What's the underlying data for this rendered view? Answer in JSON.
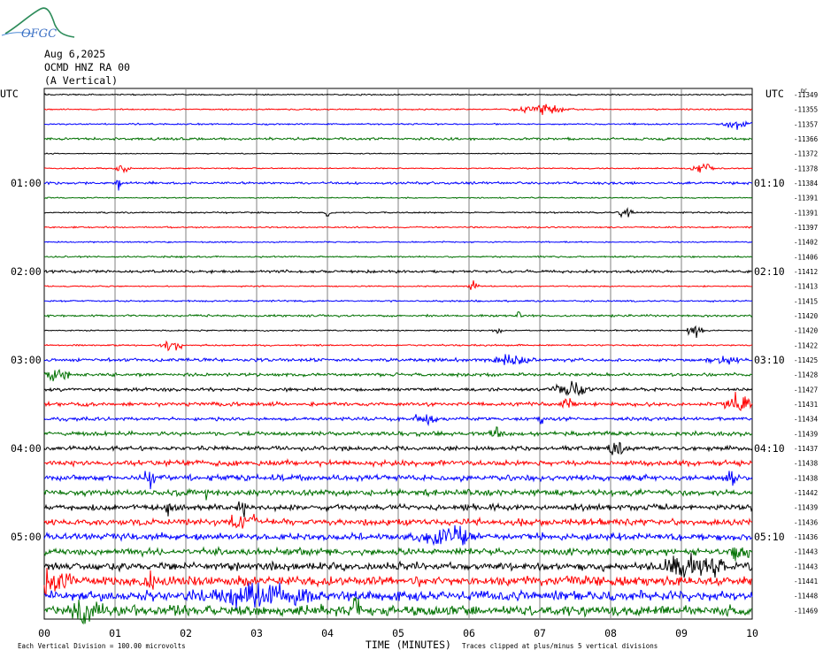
{
  "logo": {
    "text": "OFGC"
  },
  "header": {
    "date": "Aug 6,2025",
    "station": "OCMD HNZ RA 00",
    "component": "(A Vertical)"
  },
  "chart_data": {
    "type": "line",
    "title": "Aug 6,2025",
    "left_axis_label": "UTC",
    "right_axis_label": "UTC",
    "right_offset_header": "DC",
    "xlabel": "TIME (MINUTES)",
    "xlim": [
      0,
      10
    ],
    "x_ticks": [
      "00",
      "01",
      "02",
      "03",
      "04",
      "05",
      "06",
      "07",
      "08",
      "09",
      "10"
    ],
    "left_time_labels": [
      "01:00",
      "02:00",
      "03:00",
      "04:00",
      "05:00"
    ],
    "right_time_labels": [
      "01:10",
      "02:10",
      "03:10",
      "04:10",
      "05:10"
    ],
    "grid": true,
    "footer_left": "Each Vertical Division =  100.00 microvolts",
    "footer_right": "Traces clipped at plus/minus 5 vertical divisions",
    "trace_colors": [
      "#000000",
      "#ff0000",
      "#0000ff",
      "#007000"
    ],
    "trace_offsets": [
      -11349,
      -11355,
      -11357,
      -11366,
      -11372,
      -11378,
      -11384,
      -11391,
      -11391,
      -11397,
      -11402,
      -11406,
      -11412,
      -11413,
      -11415,
      -11420,
      -11420,
      -11422,
      -11425,
      -11428,
      -11427,
      -11431,
      -11434,
      -11439,
      -11437,
      -11438,
      -11438,
      -11442,
      -11439,
      -11436,
      -11436,
      -11443,
      -11443,
      -11441,
      -11448,
      -11469
    ],
    "noise_level": [
      0.5,
      0.5,
      0.55,
      0.9,
      0.35,
      0.45,
      0.9,
      0.45,
      0.55,
      0.55,
      0.5,
      0.6,
      1.0,
      0.45,
      0.6,
      0.8,
      0.5,
      0.6,
      1.2,
      1.2,
      1.2,
      1.4,
      1.3,
      1.6,
      1.6,
      2.0,
      2.2,
      2.2,
      2.2,
      2.5,
      2.6,
      2.6,
      3.0,
      3.4,
      3.6,
      3.8
    ],
    "events": [
      {
        "trace": 1,
        "minute": 7.0,
        "amplitude": 4,
        "duration": 0.5
      },
      {
        "trace": 2,
        "minute": 9.8,
        "amplitude": 3,
        "duration": 0.3
      },
      {
        "trace": 5,
        "minute": 1.1,
        "amplitude": 5,
        "duration": 0.15
      },
      {
        "trace": 5,
        "minute": 9.3,
        "amplitude": 5,
        "duration": 0.2
      },
      {
        "trace": 6,
        "minute": 1.05,
        "amplitude": 6,
        "duration": 0.05
      },
      {
        "trace": 8,
        "minute": 4.0,
        "amplitude": 5,
        "duration": 0.05
      },
      {
        "trace": 8,
        "minute": 8.2,
        "amplitude": 4,
        "duration": 0.15
      },
      {
        "trace": 13,
        "minute": 6.05,
        "amplitude": 5,
        "duration": 0.1
      },
      {
        "trace": 15,
        "minute": 6.7,
        "amplitude": 6,
        "duration": 0.05
      },
      {
        "trace": 16,
        "minute": 6.4,
        "amplitude": 4,
        "duration": 0.1
      },
      {
        "trace": 16,
        "minute": 9.2,
        "amplitude": 5,
        "duration": 0.15
      },
      {
        "trace": 17,
        "minute": 1.8,
        "amplitude": 5,
        "duration": 0.2
      },
      {
        "trace": 18,
        "minute": 6.6,
        "amplitude": 5,
        "duration": 0.4
      },
      {
        "trace": 18,
        "minute": 9.6,
        "amplitude": 4,
        "duration": 0.3
      },
      {
        "trace": 19,
        "minute": 0.2,
        "amplitude": 6,
        "duration": 0.2
      },
      {
        "trace": 20,
        "minute": 7.4,
        "amplitude": 7,
        "duration": 0.3
      },
      {
        "trace": 21,
        "minute": 7.4,
        "amplitude": 7,
        "duration": 0.1
      },
      {
        "trace": 21,
        "minute": 9.8,
        "amplitude": 8,
        "duration": 0.3
      },
      {
        "trace": 22,
        "minute": 5.4,
        "amplitude": 6,
        "duration": 0.2
      },
      {
        "trace": 22,
        "minute": 7.0,
        "amplitude": 7,
        "duration": 0.05
      },
      {
        "trace": 23,
        "minute": 6.4,
        "amplitude": 5,
        "duration": 0.15
      },
      {
        "trace": 24,
        "minute": 8.1,
        "amplitude": 5,
        "duration": 0.2
      },
      {
        "trace": 26,
        "minute": 1.5,
        "amplitude": 8,
        "duration": 0.1
      },
      {
        "trace": 26,
        "minute": 9.7,
        "amplitude": 7,
        "duration": 0.1
      },
      {
        "trace": 27,
        "minute": 2.3,
        "amplitude": 8,
        "duration": 0.05
      },
      {
        "trace": 28,
        "minute": 1.75,
        "amplitude": 8,
        "duration": 0.05
      },
      {
        "trace": 28,
        "minute": 2.8,
        "amplitude": 7,
        "duration": 0.1
      },
      {
        "trace": 29,
        "minute": 2.8,
        "amplitude": 6,
        "duration": 0.3
      },
      {
        "trace": 30,
        "minute": 5.7,
        "amplitude": 8,
        "duration": 0.5
      },
      {
        "trace": 31,
        "minute": 9.8,
        "amplitude": 6,
        "duration": 0.2
      },
      {
        "trace": 32,
        "minute": 9.2,
        "amplitude": 9,
        "duration": 0.6
      },
      {
        "trace": 33,
        "minute": 0.1,
        "amplitude": 10,
        "duration": 0.4
      },
      {
        "trace": 33,
        "minute": 1.5,
        "amplitude": 8,
        "duration": 0.1
      },
      {
        "trace": 34,
        "minute": 3.0,
        "amplitude": 8,
        "duration": 1.0
      },
      {
        "trace": 35,
        "minute": 0.6,
        "amplitude": 7,
        "duration": 0.3
      },
      {
        "trace": 35,
        "minute": 4.4,
        "amplitude": 9,
        "duration": 0.1
      }
    ]
  }
}
